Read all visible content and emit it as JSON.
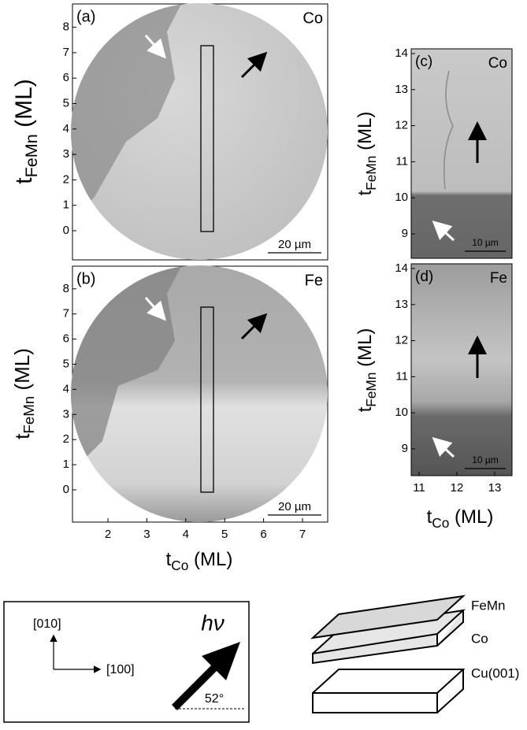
{
  "panels": [
    {
      "label": "(a)",
      "element": "Co",
      "scale": "20 µm"
    },
    {
      "label": "(b)",
      "element": "Fe",
      "scale": "20 µm"
    },
    {
      "label": "(c)",
      "element": "Co",
      "scale": "10 µm"
    },
    {
      "label": "(d)",
      "element": "Fe",
      "scale": "10 µm"
    }
  ],
  "left_yticks": [
    0,
    1,
    2,
    3,
    4,
    5,
    6,
    7,
    8
  ],
  "left_xticks": [
    2,
    3,
    4,
    5,
    6,
    7
  ],
  "right_yticks": [
    9,
    10,
    11,
    12,
    13,
    14
  ],
  "right_xticks": [
    11,
    12,
    13
  ],
  "y_title": {
    "base": "t",
    "sub": "FeMn",
    "unit": "(ML)"
  },
  "x_title": {
    "base": "t",
    "sub": "Co",
    "unit": "(ML)"
  },
  "legend": {
    "axis_y": "[010]",
    "axis_x": "[100]",
    "photon": "hν",
    "angle": "52°"
  },
  "layers": [
    "FeMn",
    "Co",
    "Cu(001)"
  ]
}
